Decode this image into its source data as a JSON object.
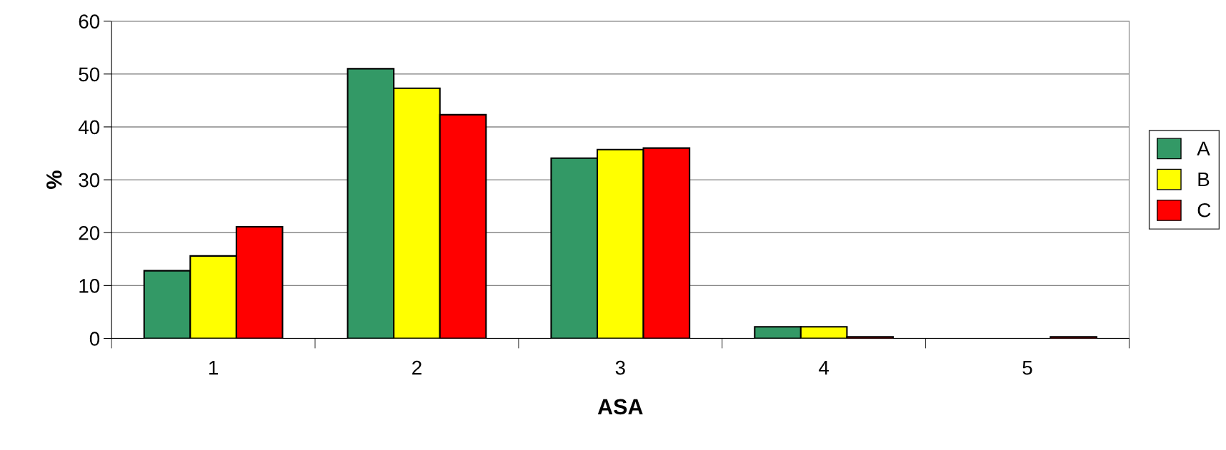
{
  "chart_data": {
    "type": "bar",
    "xlabel": "ASA",
    "ylabel": "%",
    "categories": [
      "1",
      "2",
      "3",
      "4",
      "5"
    ],
    "series": [
      {
        "name": "A",
        "color": "#339966",
        "values": [
          12.8,
          51.0,
          34.1,
          2.2,
          null
        ]
      },
      {
        "name": "B",
        "color": "#ffff00",
        "values": [
          15.6,
          47.3,
          35.7,
          2.2,
          null
        ]
      },
      {
        "name": "C",
        "color": "#ff0000",
        "values": [
          21.1,
          42.3,
          36.0,
          0.3,
          0.3
        ]
      }
    ],
    "ylim": [
      0,
      60
    ],
    "yticks": [
      0,
      10,
      20,
      30,
      40,
      50,
      60
    ],
    "grid": "y",
    "legend": "right"
  }
}
